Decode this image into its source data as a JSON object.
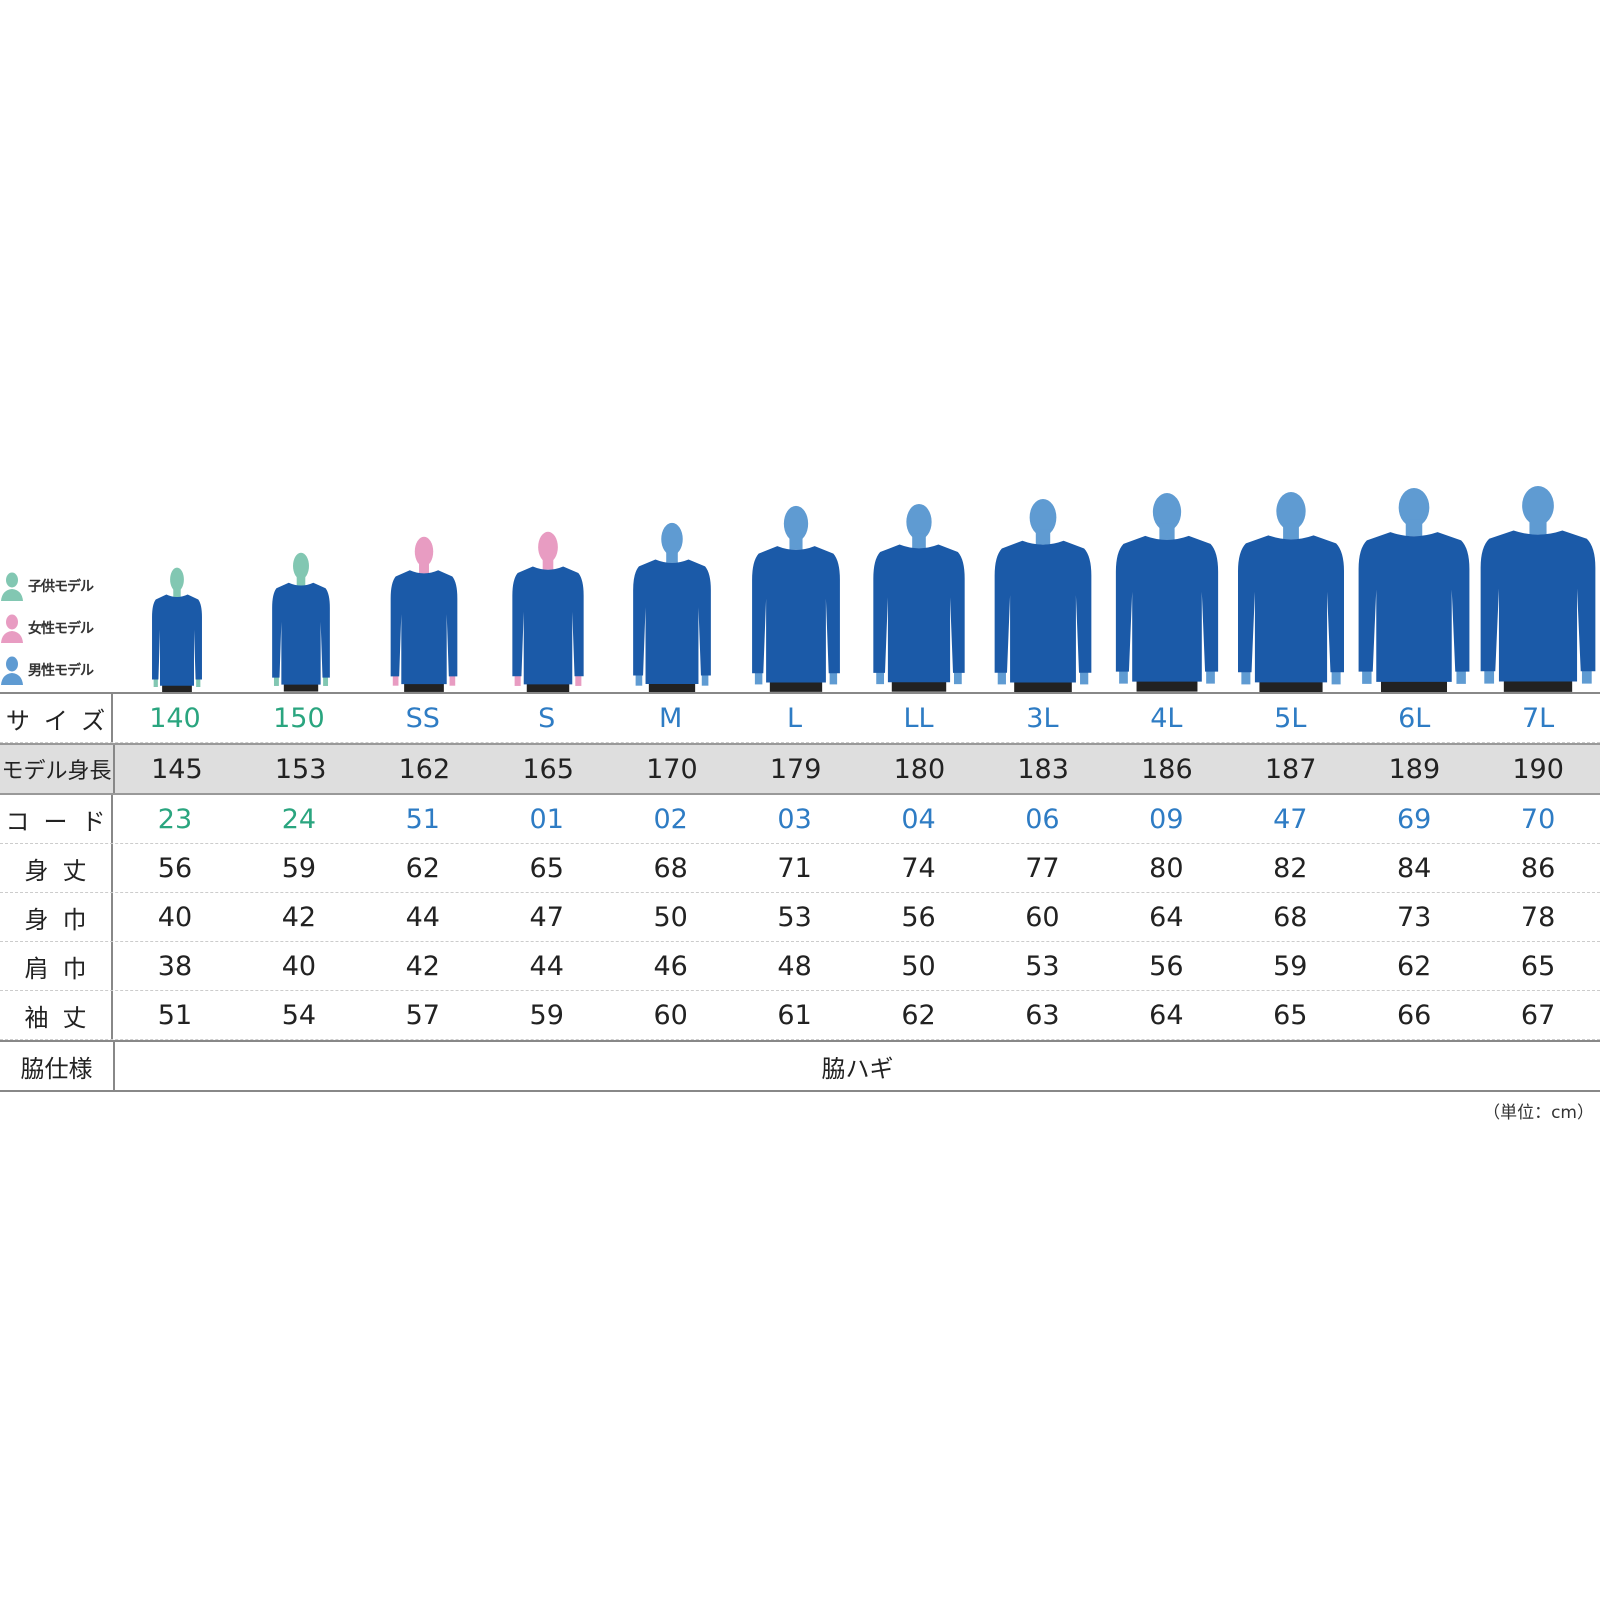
{
  "colors": {
    "child": "#2aa57f",
    "adult": "#2e7cc4",
    "child_head": "#82c7b2",
    "female_head": "#e89cc2",
    "male_head": "#5f9bd2",
    "shirt": "#1b5aa8",
    "pants": "#222222"
  },
  "legend": [
    {
      "label": "子供モデル",
      "type": "child"
    },
    {
      "label": "女性モデル",
      "type": "female"
    },
    {
      "label": "男性モデル",
      "type": "male"
    }
  ],
  "sizes": [
    "140",
    "150",
    "SS",
    "S",
    "M",
    "L",
    "LL",
    "3L",
    "4L",
    "5L",
    "6L",
    "7L"
  ],
  "model_types": [
    "child",
    "child",
    "female",
    "female",
    "male",
    "male",
    "male",
    "male",
    "male",
    "male",
    "male",
    "male"
  ],
  "table": {
    "size_label": "サイズ",
    "height_label": "モデル身長",
    "code_label": "コード",
    "rows": [
      {
        "label": "身丈",
        "values": [
          "56",
          "59",
          "62",
          "65",
          "68",
          "71",
          "74",
          "77",
          "80",
          "82",
          "84",
          "86"
        ]
      },
      {
        "label": "身巾",
        "values": [
          "40",
          "42",
          "44",
          "47",
          "50",
          "53",
          "56",
          "60",
          "64",
          "68",
          "73",
          "78"
        ]
      },
      {
        "label": "肩巾",
        "values": [
          "38",
          "40",
          "42",
          "44",
          "46",
          "48",
          "50",
          "53",
          "56",
          "59",
          "62",
          "65"
        ]
      },
      {
        "label": "袖丈",
        "values": [
          "51",
          "54",
          "57",
          "59",
          "60",
          "61",
          "62",
          "63",
          "64",
          "65",
          "66",
          "67"
        ]
      }
    ],
    "model_heights": [
      "145",
      "153",
      "162",
      "165",
      "170",
      "179",
      "180",
      "183",
      "186",
      "187",
      "189",
      "190"
    ],
    "codes": [
      "23",
      "24",
      "51",
      "01",
      "02",
      "03",
      "04",
      "06",
      "09",
      "47",
      "69",
      "70"
    ],
    "side_label": "脇仕様",
    "side_value": "脇ハギ"
  },
  "unit": "（単位：cm）"
}
